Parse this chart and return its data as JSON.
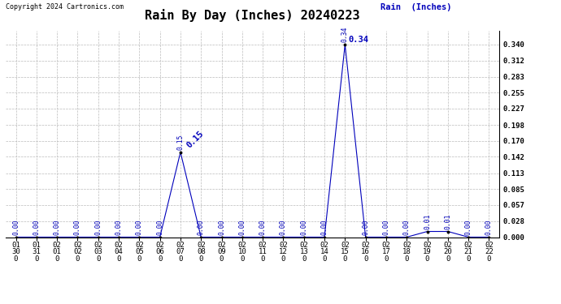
{
  "title": "Rain By Day (Inches) 20240223",
  "copyright_text": "Copyright 2024 Cartronics.com",
  "legend_label": "Rain  (Inches)",
  "dates": [
    "01/30",
    "01/31",
    "02/01",
    "02/02",
    "02/03",
    "02/04",
    "02/05",
    "02/06",
    "02/07",
    "02/08",
    "02/09",
    "02/10",
    "02/11",
    "02/12",
    "02/13",
    "02/14",
    "02/15",
    "02/16",
    "02/17",
    "02/18",
    "02/19",
    "02/20",
    "02/21",
    "02/22"
  ],
  "values": [
    0.0,
    0.0,
    0.0,
    0.0,
    0.0,
    0.0,
    0.0,
    0.0,
    0.15,
    0.0,
    0.0,
    0.0,
    0.0,
    0.0,
    0.0,
    0.0,
    0.34,
    0.0,
    0.0,
    0.0,
    0.01,
    0.01,
    0.0,
    0.0
  ],
  "yticks": [
    0.0,
    0.028,
    0.057,
    0.085,
    0.113,
    0.142,
    0.17,
    0.198,
    0.227,
    0.255,
    0.283,
    0.312,
    0.34
  ],
  "ylim": [
    0.0,
    0.365
  ],
  "line_color": "#0000bb",
  "marker_color": "#000000",
  "label_color": "#0000bb",
  "grid_color": "#bbbbbb",
  "bg_color": "#ffffff",
  "title_fontsize": 11,
  "tick_label_fontsize": 6.5,
  "value_label_fontsize": 5.8,
  "annotate_peak_08": "0.15",
  "annotate_peak_15": "0.34",
  "peak_08_idx": 8,
  "peak_15_idx": 16
}
